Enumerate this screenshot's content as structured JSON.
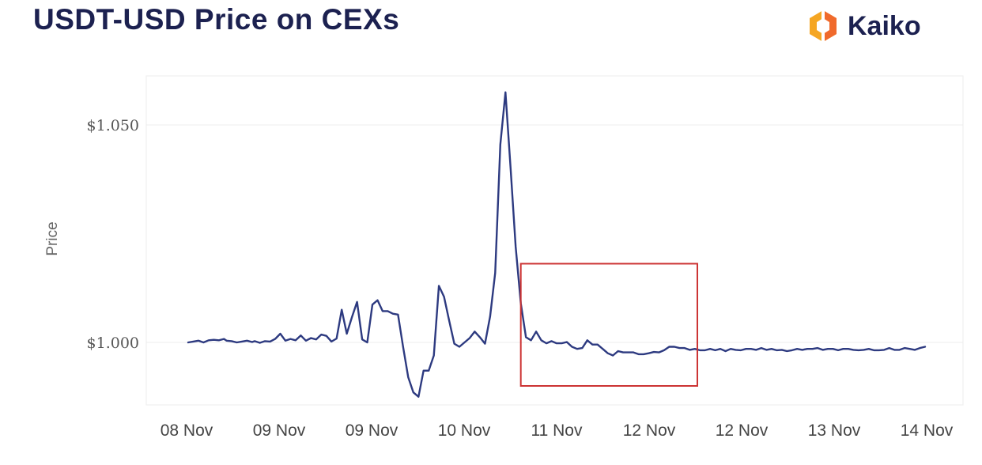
{
  "header": {
    "title": "USDT-USD Price on CEXs",
    "brand": "Kaiko",
    "brand_colors": [
      "#f7b733",
      "#f06a2c"
    ]
  },
  "chart_data": {
    "type": "line",
    "title": "USDT-USD Price on CEXs",
    "xlabel": "",
    "ylabel": "Price",
    "y_tick_labels": [
      "$1.000",
      "$1.050"
    ],
    "y_ticks": [
      1.0,
      1.05
    ],
    "ylim": [
      0.985,
      1.061
    ],
    "x_tick_labels": [
      "08 Nov",
      "09 Nov",
      "09 Nov",
      "10 Nov",
      "11 Nov",
      "12 Nov",
      "12 Nov",
      "13 Nov",
      "14 Nov"
    ],
    "grid": true,
    "line_color": "#2d3a80",
    "highlight_color": "#cc3333",
    "highlight": {
      "x_range": [
        130.0,
        199.0
      ],
      "y_range": [
        0.99,
        1.0181
      ]
    },
    "series": [
      {
        "values": [
          [
            0,
            1.0
          ],
          [
            2,
            1.0002
          ],
          [
            4,
            1.0004
          ],
          [
            6,
            1.0
          ],
          [
            8,
            1.0005
          ],
          [
            10,
            1.0006
          ],
          [
            12,
            1.0005
          ],
          [
            14,
            1.0008
          ],
          [
            15,
            1.0004
          ],
          [
            17,
            1.0003
          ],
          [
            19,
            1.0
          ],
          [
            21,
            1.0002
          ],
          [
            23,
            1.0004
          ],
          [
            25,
            1.0001
          ],
          [
            26,
            1.0003
          ],
          [
            28,
            0.9999
          ],
          [
            30,
            1.0003
          ],
          [
            32,
            1.0002
          ],
          [
            34,
            1.0008
          ],
          [
            36,
            1.002
          ],
          [
            38,
            1.0004
          ],
          [
            40,
            1.0008
          ],
          [
            42,
            1.0005
          ],
          [
            44,
            1.0016
          ],
          [
            46,
            1.0004
          ],
          [
            48,
            1.001
          ],
          [
            50,
            1.0007
          ],
          [
            52,
            1.0018
          ],
          [
            54,
            1.0015
          ],
          [
            56,
            1.0002
          ],
          [
            58,
            1.0009
          ],
          [
            60,
            1.0075
          ],
          [
            62,
            1.002
          ],
          [
            64,
            1.0058
          ],
          [
            66,
            1.0093
          ],
          [
            68,
            1.0007
          ],
          [
            70,
            1.0
          ],
          [
            72,
            1.0087
          ],
          [
            74,
            1.0097
          ],
          [
            76,
            1.0072
          ],
          [
            78,
            1.0072
          ],
          [
            80,
            1.0066
          ],
          [
            82,
            1.0064
          ],
          [
            84,
            0.999
          ],
          [
            86,
            0.992
          ],
          [
            88,
            0.9885
          ],
          [
            90,
            0.9875
          ],
          [
            92,
            0.9935
          ],
          [
            94,
            0.9935
          ],
          [
            96,
            0.997
          ],
          [
            98,
            1.013
          ],
          [
            100,
            1.0105
          ],
          [
            102,
            1.005
          ],
          [
            104,
            0.9997
          ],
          [
            106,
            0.999
          ],
          [
            108,
            1.0
          ],
          [
            110,
            1.001
          ],
          [
            112,
            1.0025
          ],
          [
            114,
            1.0012
          ],
          [
            116,
            0.9997
          ],
          [
            118,
            1.006
          ],
          [
            120,
            1.016
          ],
          [
            122,
            1.0455
          ],
          [
            124,
            1.0575
          ],
          [
            126,
            1.04
          ],
          [
            128,
            1.022
          ],
          [
            130,
            1.009
          ],
          [
            132,
            1.0012
          ],
          [
            134,
            1.0005
          ],
          [
            136,
            1.0025
          ],
          [
            138,
            1.0005
          ],
          [
            140,
            0.9998
          ],
          [
            142,
            1.0003
          ],
          [
            144,
            0.9998
          ],
          [
            146,
            0.9998
          ],
          [
            148,
            1.0001
          ],
          [
            150,
            0.999
          ],
          [
            152,
            0.9985
          ],
          [
            154,
            0.9987
          ],
          [
            156,
            1.0005
          ],
          [
            158,
            0.9995
          ],
          [
            160,
            0.9995
          ],
          [
            162,
            0.9985
          ],
          [
            164,
            0.9975
          ],
          [
            166,
            0.997
          ],
          [
            168,
            0.998
          ],
          [
            170,
            0.9977
          ],
          [
            172,
            0.9977
          ],
          [
            174,
            0.9977
          ],
          [
            176,
            0.9973
          ],
          [
            178,
            0.9973
          ],
          [
            180,
            0.9975
          ],
          [
            182,
            0.9978
          ],
          [
            184,
            0.9977
          ],
          [
            186,
            0.9982
          ],
          [
            188,
            0.999
          ],
          [
            190,
            0.999
          ],
          [
            192,
            0.9987
          ],
          [
            194,
            0.9987
          ],
          [
            196,
            0.9983
          ],
          [
            198,
            0.9985
          ],
          [
            200,
            0.9982
          ],
          [
            202,
            0.9982
          ],
          [
            204,
            0.9985
          ],
          [
            206,
            0.9982
          ],
          [
            208,
            0.9985
          ],
          [
            210,
            0.998
          ],
          [
            212,
            0.9985
          ],
          [
            214,
            0.9983
          ],
          [
            216,
            0.9982
          ],
          [
            218,
            0.9985
          ],
          [
            220,
            0.9985
          ],
          [
            222,
            0.9983
          ],
          [
            224,
            0.9987
          ],
          [
            226,
            0.9983
          ],
          [
            228,
            0.9985
          ],
          [
            230,
            0.9982
          ],
          [
            232,
            0.9983
          ],
          [
            234,
            0.998
          ],
          [
            236,
            0.9982
          ],
          [
            238,
            0.9985
          ],
          [
            240,
            0.9983
          ],
          [
            242,
            0.9985
          ],
          [
            244,
            0.9985
          ],
          [
            246,
            0.9987
          ],
          [
            248,
            0.9983
          ],
          [
            250,
            0.9985
          ],
          [
            252,
            0.9985
          ],
          [
            254,
            0.9982
          ],
          [
            256,
            0.9985
          ],
          [
            258,
            0.9985
          ],
          [
            260,
            0.9983
          ],
          [
            262,
            0.9982
          ],
          [
            264,
            0.9983
          ],
          [
            266,
            0.9985
          ],
          [
            268,
            0.9982
          ],
          [
            270,
            0.9982
          ],
          [
            272,
            0.9983
          ],
          [
            274,
            0.9987
          ],
          [
            276,
            0.9983
          ],
          [
            278,
            0.9983
          ],
          [
            280,
            0.9987
          ],
          [
            282,
            0.9985
          ],
          [
            284,
            0.9983
          ],
          [
            286,
            0.9987
          ],
          [
            288,
            0.999
          ]
        ]
      }
    ]
  }
}
